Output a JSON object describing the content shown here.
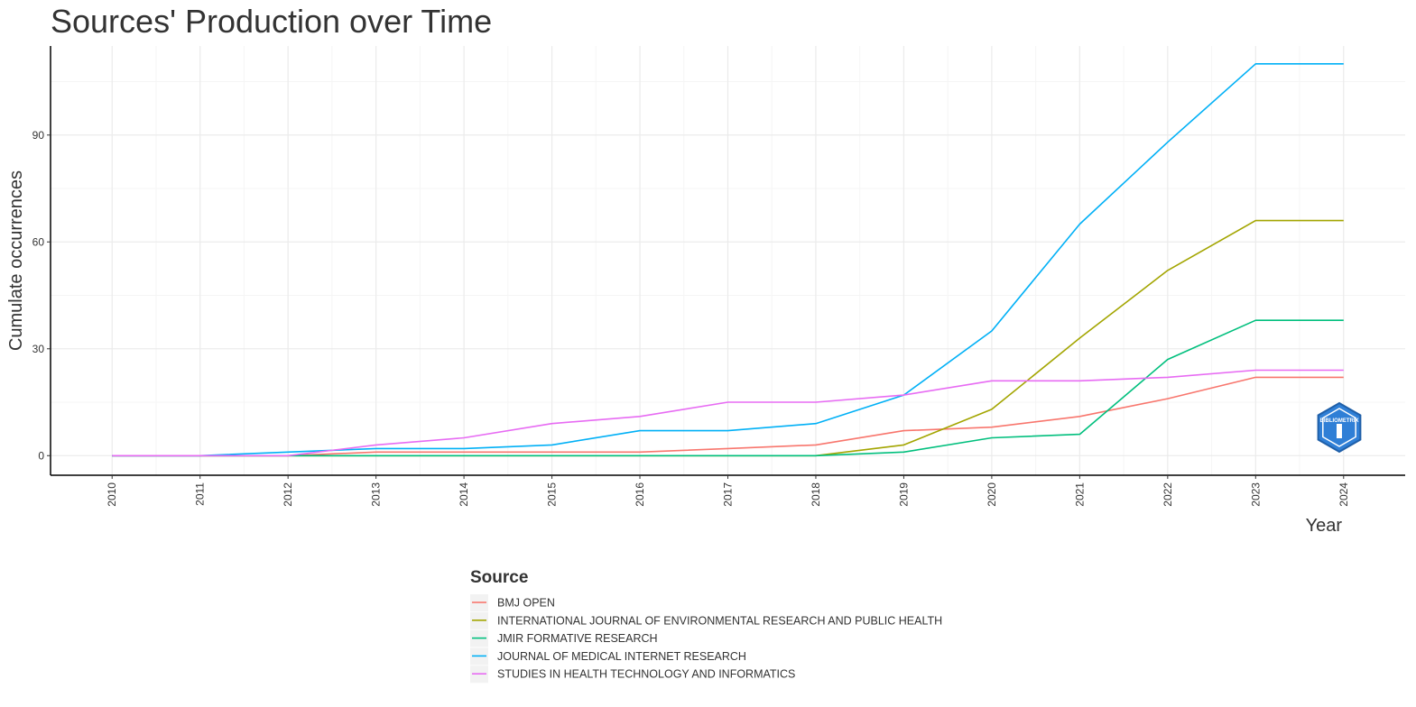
{
  "colors": {
    "background": "#ffffff",
    "grid_major": "#ebebeb",
    "grid_minor": "#f5f5f5",
    "axis": "#000000",
    "text": "#333333"
  },
  "chart_data": {
    "type": "line",
    "title": "Sources' Production over Time",
    "xlabel": "Year",
    "ylabel": "Cumulate occurrences",
    "x": [
      2010,
      2011,
      2012,
      2013,
      2014,
      2015,
      2016,
      2017,
      2018,
      2019,
      2020,
      2021,
      2022,
      2023,
      2024
    ],
    "xlim": [
      2009.3,
      2024.7
    ],
    "ylim": [
      -5.5,
      115
    ],
    "yticks": [
      0,
      30,
      60,
      90
    ],
    "grid": true,
    "legend_title": "Source",
    "legend_position": "bottom",
    "series": [
      {
        "name": "BMJ OPEN",
        "color": "#F8766D",
        "values": [
          0,
          0,
          0,
          1,
          1,
          1,
          1,
          2,
          3,
          7,
          8,
          11,
          16,
          22,
          22
        ]
      },
      {
        "name": "INTERNATIONAL JOURNAL OF ENVIRONMENTAL RESEARCH AND PUBLIC HEALTH",
        "color": "#A3A500",
        "values": [
          0,
          0,
          0,
          0,
          0,
          0,
          0,
          0,
          0,
          3,
          13,
          33,
          52,
          66,
          66
        ]
      },
      {
        "name": "JMIR FORMATIVE RESEARCH",
        "color": "#00BF7D",
        "values": [
          0,
          0,
          0,
          0,
          0,
          0,
          0,
          0,
          0,
          1,
          5,
          6,
          27,
          38,
          38
        ]
      },
      {
        "name": "JOURNAL OF MEDICAL INTERNET RESEARCH",
        "color": "#00B0F6",
        "values": [
          0,
          0,
          1,
          2,
          2,
          3,
          7,
          7,
          9,
          17,
          35,
          65,
          88,
          110,
          110
        ]
      },
      {
        "name": "STUDIES IN HEALTH TECHNOLOGY AND INFORMATICS",
        "color": "#E76BF3",
        "values": [
          0,
          0,
          0,
          3,
          5,
          9,
          11,
          15,
          15,
          17,
          21,
          21,
          22,
          24,
          24
        ]
      }
    ]
  },
  "logo": {
    "text": "BIBLIOMETRIX",
    "icon": "bibliometrix-hexagon-logo-icon",
    "color": "#2f7fd6"
  }
}
